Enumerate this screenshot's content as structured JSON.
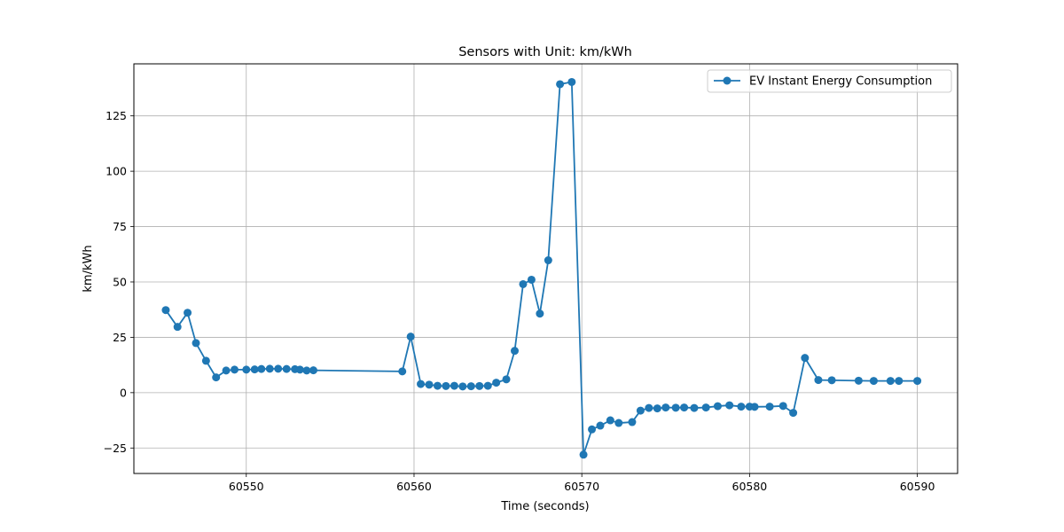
{
  "chart_data": {
    "type": "line",
    "title": "Sensors with Unit: km/kWh",
    "xlabel": "Time (seconds)",
    "ylabel": "km/kWh",
    "xlim": [
      60543.3,
      60592.4
    ],
    "ylim": [
      -36.5,
      148.5
    ],
    "xticks": [
      60550,
      60560,
      60570,
      60580,
      60590
    ],
    "yticks": [
      -25,
      0,
      25,
      50,
      75,
      100,
      125
    ],
    "grid": true,
    "legend_position": "top-right",
    "colors": {
      "series": "#1f77b4",
      "grid": "#b0b0b0",
      "axes": "#000000"
    },
    "series": [
      {
        "name": "EV Instant Energy Consumption",
        "marker": "circle",
        "points": [
          [
            60545.2,
            37.3
          ],
          [
            60545.9,
            29.7
          ],
          [
            60546.5,
            36.1
          ],
          [
            60547.0,
            22.4
          ],
          [
            60547.6,
            14.4
          ],
          [
            60548.2,
            6.9
          ],
          [
            60548.8,
            10.0
          ],
          [
            60549.3,
            10.4
          ],
          [
            60550.0,
            10.4
          ],
          [
            60550.5,
            10.5
          ],
          [
            60550.9,
            10.7
          ],
          [
            60551.4,
            10.8
          ],
          [
            60551.9,
            10.8
          ],
          [
            60552.4,
            10.7
          ],
          [
            60552.9,
            10.6
          ],
          [
            60553.2,
            10.4
          ],
          [
            60553.6,
            10.0
          ],
          [
            60554.0,
            10.1
          ],
          [
            60559.3,
            9.6
          ],
          [
            60559.8,
            25.3
          ],
          [
            60560.4,
            3.9
          ],
          [
            60560.9,
            3.6
          ],
          [
            60561.4,
            3.1
          ],
          [
            60561.9,
            3.0
          ],
          [
            60562.4,
            3.1
          ],
          [
            60562.9,
            2.8
          ],
          [
            60563.4,
            2.9
          ],
          [
            60563.9,
            3.0
          ],
          [
            60564.4,
            3.1
          ],
          [
            60564.9,
            4.5
          ],
          [
            60565.5,
            6.0
          ],
          [
            60566.0,
            18.9
          ],
          [
            60566.5,
            49.0
          ],
          [
            60567.0,
            51.0
          ],
          [
            60567.5,
            35.7
          ],
          [
            60568.0,
            59.8
          ],
          [
            60568.7,
            139.3
          ],
          [
            60569.4,
            140.3
          ],
          [
            60570.1,
            -28.0
          ],
          [
            60570.6,
            -16.6
          ],
          [
            60571.1,
            -14.9
          ],
          [
            60571.7,
            -12.5
          ],
          [
            60572.2,
            -13.7
          ],
          [
            60573.0,
            -13.3
          ],
          [
            60573.5,
            -8.1
          ],
          [
            60574.0,
            -6.9
          ],
          [
            60574.5,
            -7.1
          ],
          [
            60575.0,
            -6.7
          ],
          [
            60575.6,
            -6.8
          ],
          [
            60576.1,
            -6.7
          ],
          [
            60576.7,
            -6.9
          ],
          [
            60577.4,
            -6.7
          ],
          [
            60578.1,
            -6.1
          ],
          [
            60578.8,
            -5.7
          ],
          [
            60579.5,
            -6.3
          ],
          [
            60580.0,
            -6.3
          ],
          [
            60580.3,
            -6.4
          ],
          [
            60581.2,
            -6.3
          ],
          [
            60582.0,
            -6.0
          ],
          [
            60582.6,
            -9.1
          ],
          [
            60583.3,
            15.7
          ],
          [
            60584.1,
            5.7
          ],
          [
            60584.9,
            5.6
          ],
          [
            60586.5,
            5.4
          ],
          [
            60587.4,
            5.3
          ],
          [
            60588.4,
            5.3
          ],
          [
            60588.9,
            5.3
          ],
          [
            60590.0,
            5.3
          ]
        ]
      }
    ]
  }
}
